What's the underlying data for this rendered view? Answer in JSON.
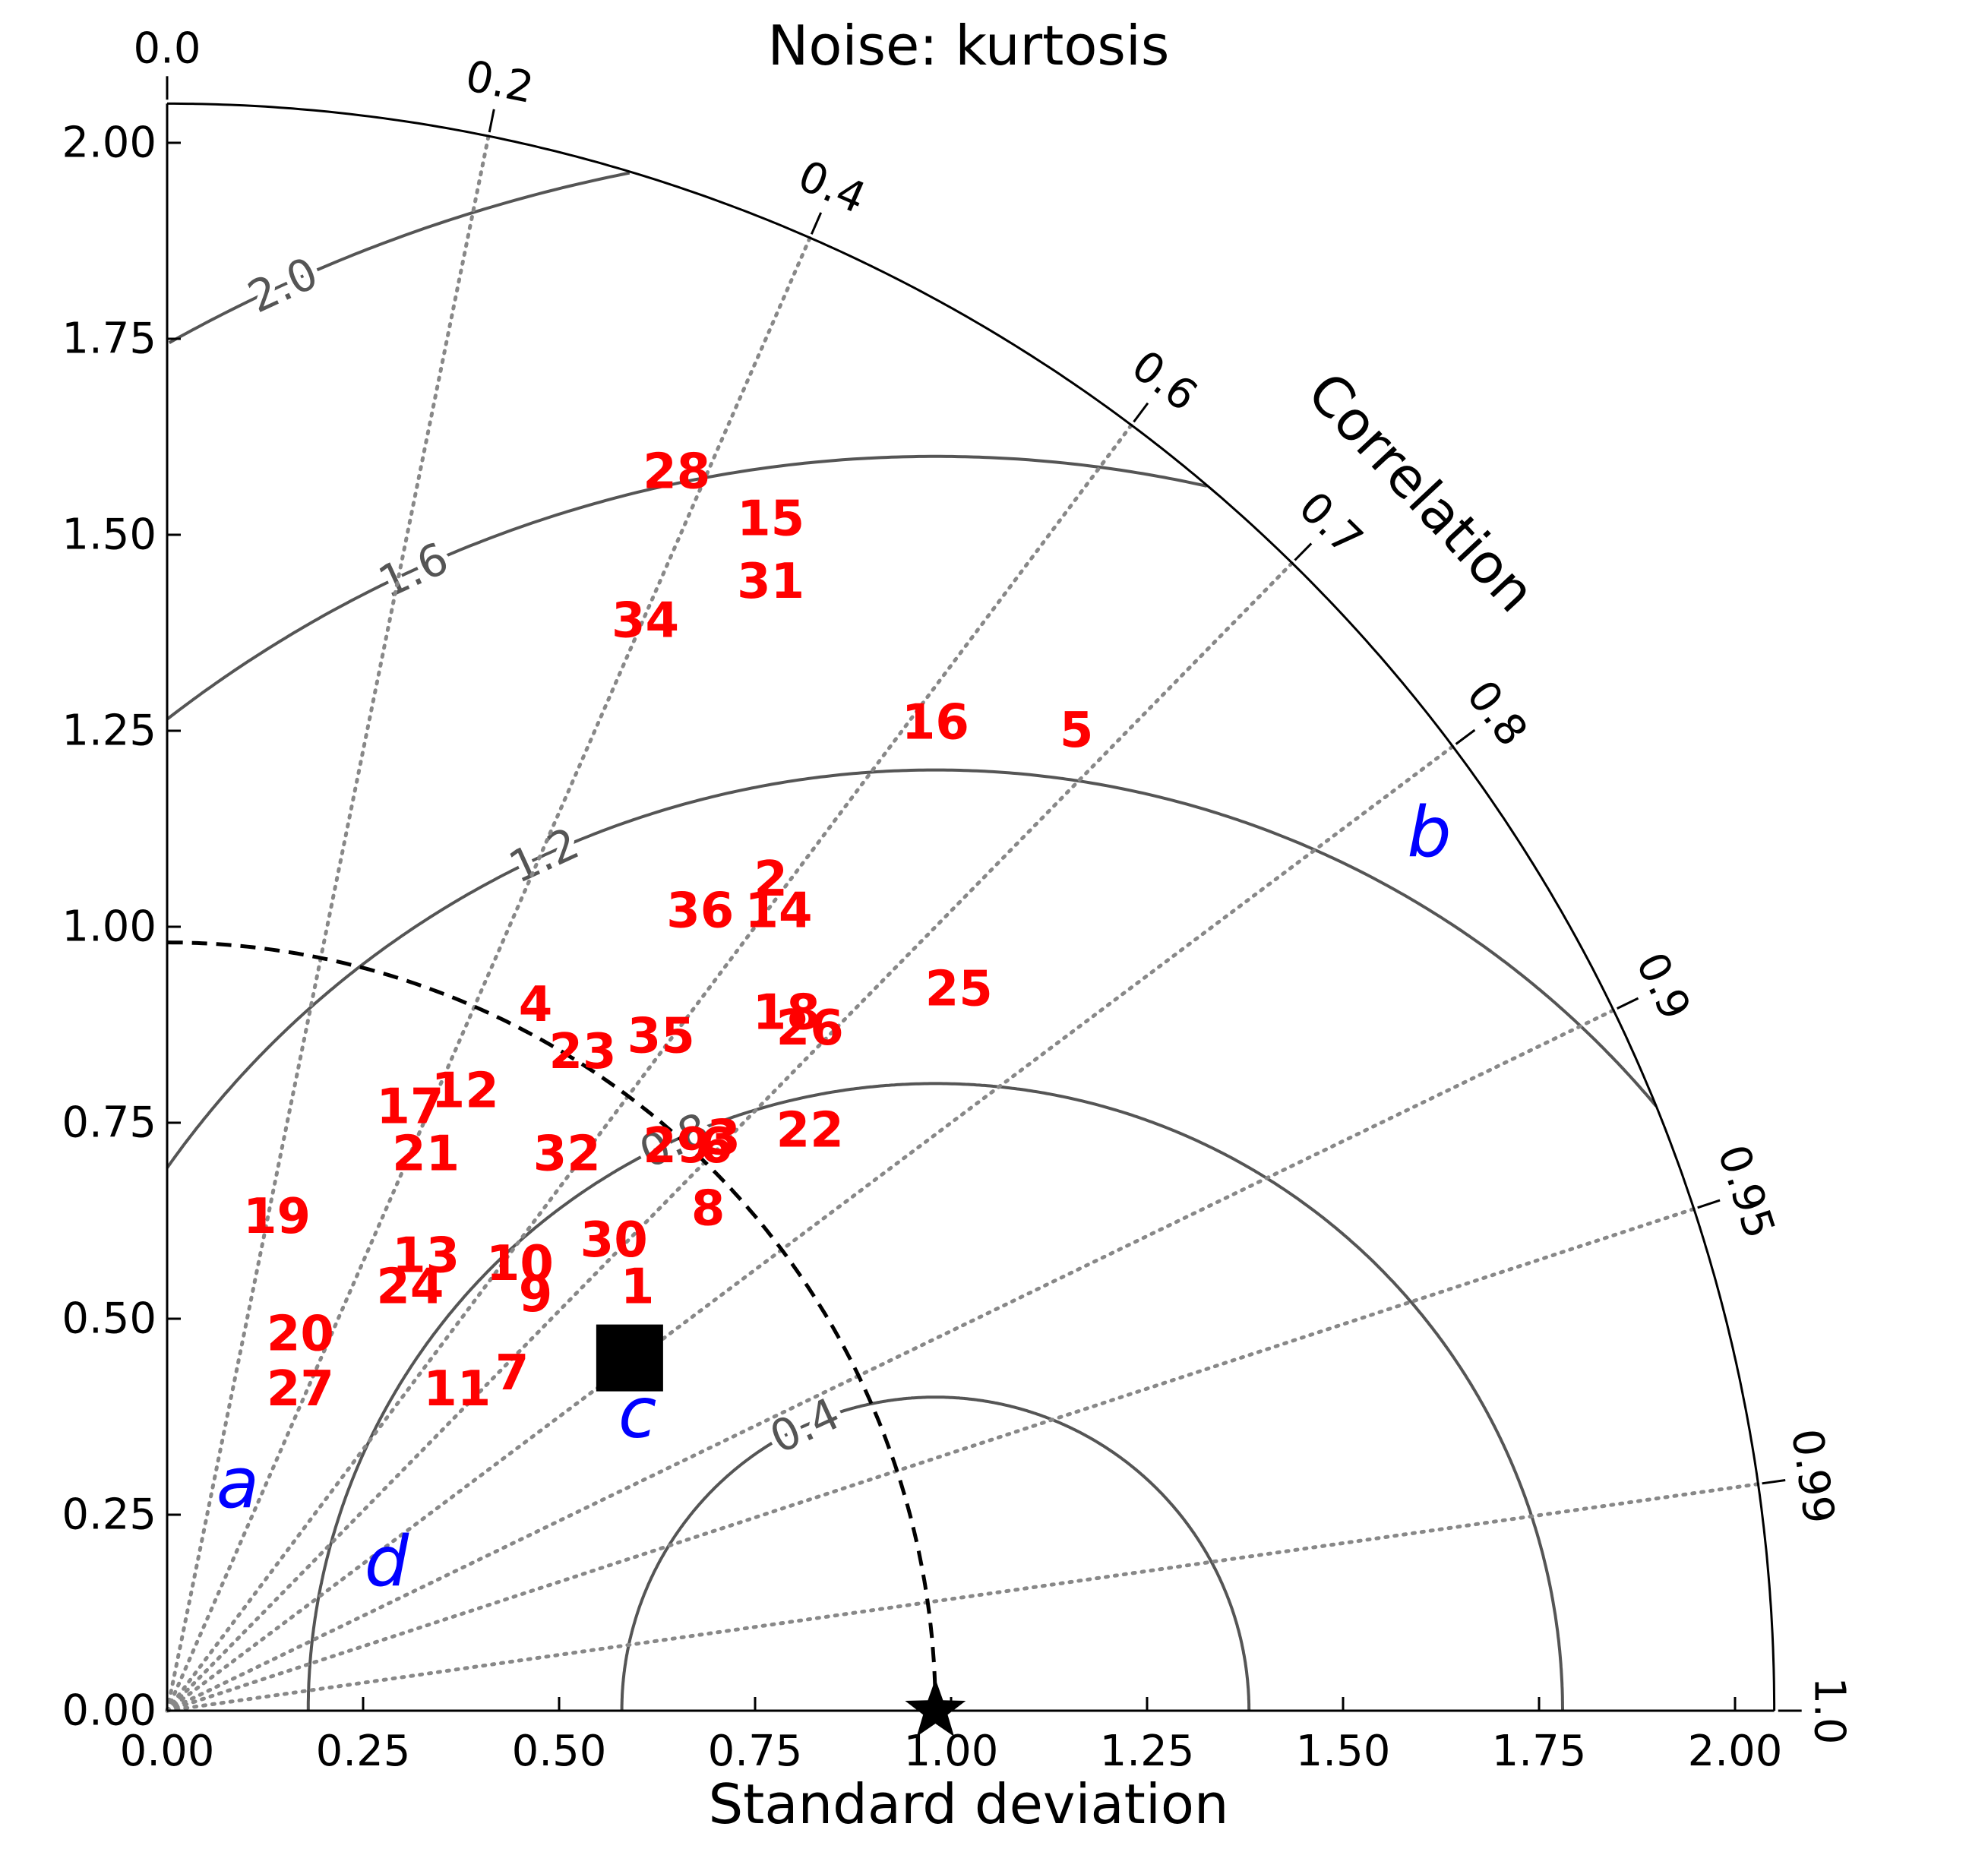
{
  "chart_data": {
    "type": "taylor-diagram",
    "title": "Noise: kurtosis",
    "xlabel": "Standard deviation",
    "correlation_label": "Correlation",
    "std_ticks": [
      0.0,
      0.25,
      0.5,
      0.75,
      1.0,
      1.25,
      1.5,
      1.75,
      2.0
    ],
    "std_tick_labels": [
      "0.00",
      "0.25",
      "0.50",
      "0.75",
      "1.00",
      "1.25",
      "1.50",
      "1.75",
      "2.00"
    ],
    "std_max": 2.05,
    "corr_ticks": [
      0.0,
      0.2,
      0.4,
      0.6,
      0.7,
      0.8,
      0.9,
      0.95,
      0.99,
      1.0
    ],
    "corr_tick_labels": [
      "0.0",
      "0.2",
      "0.4",
      "0.6",
      "0.7",
      "0.8",
      "0.9",
      "0.95",
      "0.99",
      "1.0"
    ],
    "ref_std": 0.98,
    "rms_levels": [
      0.4,
      0.8,
      1.2,
      1.6,
      2.0
    ],
    "rms_level_labels": [
      "0.4",
      "0.8",
      "1.2",
      "1.6",
      "2.0"
    ],
    "reference_marker": "star",
    "mean_marker": {
      "shape": "square",
      "x": 0.59,
      "y": 0.45
    },
    "colors": {
      "models": "#ff0000",
      "annotations": "#0000ff",
      "rms_contours": "#555555",
      "correlation_lines": "#888888",
      "axes": "#000000"
    },
    "points": [
      {
        "label": "1",
        "x": 0.6,
        "y": 0.54
      },
      {
        "label": "2",
        "x": 0.77,
        "y": 1.06
      },
      {
        "label": "3",
        "x": 0.71,
        "y": 0.73
      },
      {
        "label": "4",
        "x": 0.47,
        "y": 0.9
      },
      {
        "label": "5",
        "x": 1.16,
        "y": 1.25
      },
      {
        "label": "6",
        "x": 0.7,
        "y": 0.72
      },
      {
        "label": "7",
        "x": 0.44,
        "y": 0.43
      },
      {
        "label": "8",
        "x": 0.69,
        "y": 0.64
      },
      {
        "label": "9",
        "x": 0.47,
        "y": 0.53
      },
      {
        "label": "10",
        "x": 0.45,
        "y": 0.57
      },
      {
        "label": "11",
        "x": 0.37,
        "y": 0.41
      },
      {
        "label": "12",
        "x": 0.38,
        "y": 0.79
      },
      {
        "label": "13",
        "x": 0.33,
        "y": 0.58
      },
      {
        "label": "14",
        "x": 0.78,
        "y": 1.02
      },
      {
        "label": "15",
        "x": 0.77,
        "y": 1.52
      },
      {
        "label": "16",
        "x": 0.98,
        "y": 1.26
      },
      {
        "label": "17",
        "x": 0.31,
        "y": 0.77
      },
      {
        "label": "18",
        "x": 0.79,
        "y": 0.89
      },
      {
        "label": "19",
        "x": 0.14,
        "y": 0.63
      },
      {
        "label": "20",
        "x": 0.17,
        "y": 0.48
      },
      {
        "label": "21",
        "x": 0.33,
        "y": 0.71
      },
      {
        "label": "22",
        "x": 0.82,
        "y": 0.74
      },
      {
        "label": "23",
        "x": 0.53,
        "y": 0.84
      },
      {
        "label": "24",
        "x": 0.31,
        "y": 0.54
      },
      {
        "label": "25",
        "x": 1.01,
        "y": 0.92
      },
      {
        "label": "26",
        "x": 0.82,
        "y": 0.87
      },
      {
        "label": "27",
        "x": 0.17,
        "y": 0.41
      },
      {
        "label": "28",
        "x": 0.65,
        "y": 1.58
      },
      {
        "label": "29",
        "x": 0.65,
        "y": 0.72
      },
      {
        "label": "30",
        "x": 0.57,
        "y": 0.6
      },
      {
        "label": "31",
        "x": 0.77,
        "y": 1.44
      },
      {
        "label": "32",
        "x": 0.51,
        "y": 0.71
      },
      {
        "label": "34",
        "x": 0.61,
        "y": 1.39
      },
      {
        "label": "35",
        "x": 0.63,
        "y": 0.86
      },
      {
        "label": "36",
        "x": 0.68,
        "y": 1.02
      }
    ],
    "annotations": [
      {
        "label": "a",
        "x": 0.09,
        "y": 0.29
      },
      {
        "label": "b",
        "x": 1.61,
        "y": 1.12
      },
      {
        "label": "c",
        "x": 0.6,
        "y": 0.38
      },
      {
        "label": "d",
        "x": 0.28,
        "y": 0.19
      }
    ]
  }
}
